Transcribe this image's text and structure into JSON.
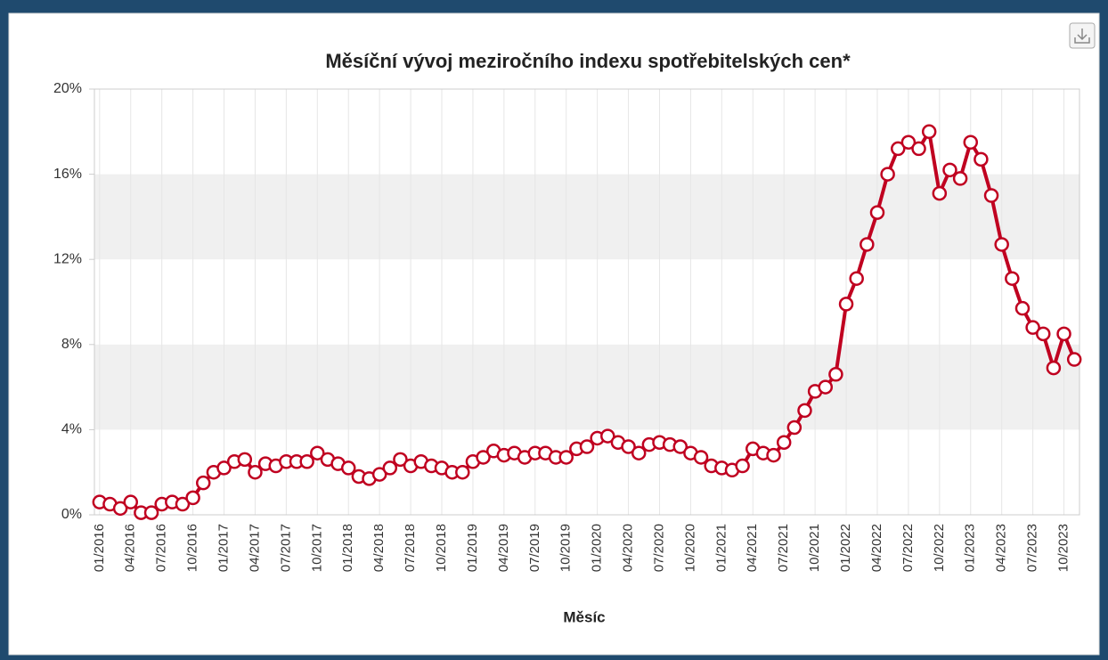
{
  "chart_data": {
    "type": "line",
    "title": "Měsíční vývoj meziročního indexu spotřebitelských cen*",
    "x_label": "Měsíc",
    "categories": [
      "01/2016",
      null,
      null,
      "04/2016",
      null,
      null,
      "07/2016",
      null,
      null,
      "10/2016",
      null,
      null,
      "01/2017",
      null,
      null,
      "04/2017",
      null,
      null,
      "07/2017",
      null,
      null,
      "10/2017",
      null,
      null,
      "01/2018",
      null,
      null,
      "04/2018",
      null,
      null,
      "07/2018",
      null,
      null,
      "10/2018",
      null,
      null,
      "01/2019",
      null,
      null,
      "04/2019",
      null,
      null,
      "07/2019",
      null,
      null,
      "10/2019",
      null,
      null,
      "01/2020",
      null,
      null,
      "04/2020",
      null,
      null,
      "07/2020",
      null,
      null,
      "10/2020",
      null,
      null,
      "01/2021",
      null,
      null,
      "04/2021",
      null,
      null,
      "07/2021",
      null,
      null,
      "10/2021",
      null,
      null,
      "01/2022",
      null,
      null,
      "04/2022",
      null,
      null,
      "07/2022",
      null,
      null,
      "10/2022",
      null,
      null,
      "01/2023",
      null,
      null,
      "04/2023",
      null,
      null,
      "07/2023",
      null,
      null,
      "10/2023",
      null
    ],
    "values": [
      0.6,
      0.5,
      0.3,
      0.6,
      0.1,
      0.1,
      0.5,
      0.6,
      0.5,
      0.8,
      1.5,
      2.0,
      2.2,
      2.5,
      2.6,
      2.0,
      2.4,
      2.3,
      2.5,
      2.5,
      2.5,
      2.9,
      2.6,
      2.4,
      2.2,
      1.8,
      1.7,
      1.9,
      2.2,
      2.6,
      2.3,
      2.5,
      2.3,
      2.2,
      2.0,
      2.0,
      2.5,
      2.7,
      3.0,
      2.8,
      2.9,
      2.7,
      2.9,
      2.9,
      2.7,
      2.7,
      3.1,
      3.2,
      3.6,
      3.7,
      3.4,
      3.2,
      2.9,
      3.3,
      3.4,
      3.3,
      3.2,
      2.9,
      2.7,
      2.3,
      2.2,
      2.1,
      2.3,
      3.1,
      2.9,
      2.8,
      3.4,
      4.1,
      4.9,
      5.8,
      6.0,
      6.6,
      9.9,
      11.1,
      12.7,
      14.2,
      16.0,
      17.2,
      17.5,
      17.2,
      18.0,
      15.1,
      16.2,
      15.8,
      17.5,
      16.7,
      15.0,
      12.7,
      11.1,
      9.7,
      8.8,
      8.5,
      6.9,
      8.5,
      7.3
    ],
    "color": "#c00020",
    "ylim": [
      0,
      20
    ],
    "yticks": [
      {
        "value": 0,
        "label": "0%"
      },
      {
        "value": 4,
        "label": "4%"
      },
      {
        "value": 8,
        "label": "8%"
      },
      {
        "value": 12,
        "label": "12%"
      },
      {
        "value": 16,
        "label": "16%"
      },
      {
        "value": 20,
        "label": "20%"
      }
    ],
    "alternate_bands": true,
    "grid": true
  }
}
